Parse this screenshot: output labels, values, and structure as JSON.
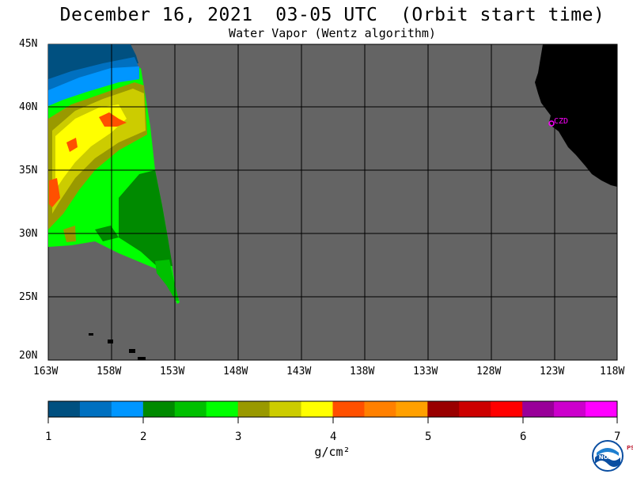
{
  "header": {
    "title": "December 16, 2021  03-05 UTC  (Orbit start time)",
    "subtitle": "Water Vapor (Wentz algorithm)"
  },
  "map": {
    "lat_labels": [
      "45N",
      "40N",
      "35N",
      "30N",
      "25N",
      "20N"
    ],
    "lon_labels": [
      "163W",
      "158W",
      "153W",
      "148W",
      "143W",
      "138W",
      "133W",
      "128W",
      "123W",
      "118W"
    ],
    "station_label": "CZD",
    "colors": {
      "no_data": "#646464",
      "land": "#000000",
      "grid": "#000000",
      "station": "#ff00ff"
    }
  },
  "colorbar": {
    "tick_labels": [
      "1",
      "2",
      "3",
      "4",
      "5",
      "6",
      "7"
    ],
    "units": "g/cm²",
    "colors": [
      "#005080",
      "#0070c0",
      "#0096ff",
      "#008a00",
      "#00c000",
      "#00ff00",
      "#999900",
      "#cccc00",
      "#ffff00",
      "#ff5000",
      "#ff8000",
      "#ffa000",
      "#990000",
      "#cc0000",
      "#ff0000",
      "#990099",
      "#cc00cc",
      "#ff00ff"
    ]
  },
  "logo": {
    "text": "NOAA",
    "psl": "PSL"
  }
}
